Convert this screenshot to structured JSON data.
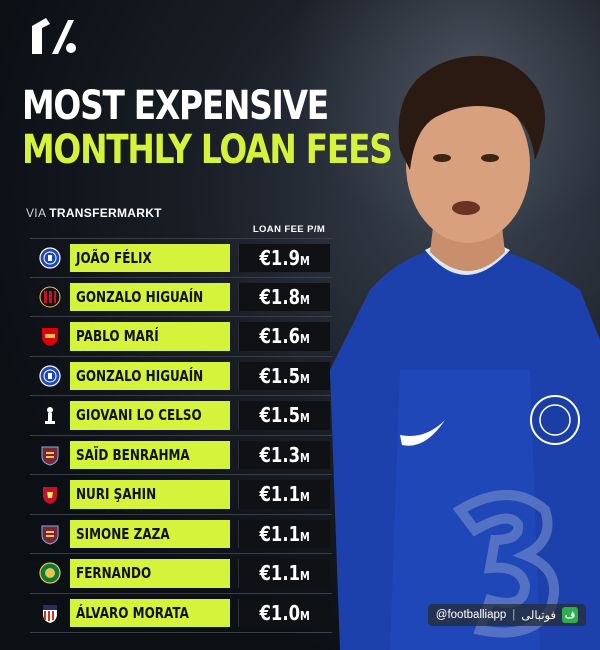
{
  "header": {
    "title_line1": "MOST EXPENSIVE",
    "title_line2": "MONTHLY LOAN FEES",
    "source_prefix": "VIA",
    "source_name": "TRANSFERMARKT",
    "column_label": "LOAN FEE P/M"
  },
  "colors": {
    "accent": "#d6f33b",
    "background": "#0c0f14",
    "fee_cell": "#0f1115"
  },
  "rows": [
    {
      "club_icon": "chelsea-crest-icon",
      "player": "JOÃO FÉLIX",
      "fee": "€1.9",
      "unit": "M"
    },
    {
      "club_icon": "ac-milan-crest-icon",
      "player": "GONZALO HIGUAÍN",
      "fee": "€1.8",
      "unit": "M"
    },
    {
      "club_icon": "arsenal-crest-icon",
      "player": "PABLO MARÍ",
      "fee": "€1.6",
      "unit": "M"
    },
    {
      "club_icon": "chelsea-crest-icon",
      "player": "GONZALO HIGUAÍN",
      "fee": "€1.5",
      "unit": "M"
    },
    {
      "club_icon": "tottenham-crest-icon",
      "player": "GIOVANI LO CELSO",
      "fee": "€1.5",
      "unit": "M"
    },
    {
      "club_icon": "west-ham-crest-icon",
      "player": "SAÏD BENRAHMA",
      "fee": "€1.3",
      "unit": "M"
    },
    {
      "club_icon": "liverpool-crest-icon",
      "player": "NURI ŞAHIN",
      "fee": "€1.1",
      "unit": "M"
    },
    {
      "club_icon": "west-ham-crest-icon",
      "player": "SIMONE ZAZA",
      "fee": "€1.1",
      "unit": "M"
    },
    {
      "club_icon": "al-ahli-crest-icon",
      "player": "FERNANDO",
      "fee": "€1.1",
      "unit": "M"
    },
    {
      "club_icon": "atletico-crest-icon",
      "player": "ÁLVARO MORATA",
      "fee": "€1.0",
      "unit": "M"
    }
  ],
  "watermark": {
    "handle": "@footballiapp",
    "separator": "|",
    "brand": "فوتبالی",
    "badge": "ف"
  }
}
